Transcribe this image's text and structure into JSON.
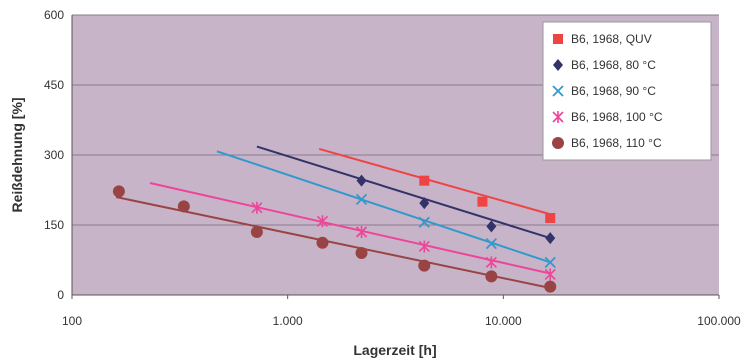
{
  "chart_data": {
    "type": "scatter",
    "xlabel": "Lagerzeit [h]",
    "ylabel": "Reißdehnung [%]",
    "xscale": "log",
    "xlim": [
      100,
      100000
    ],
    "ylim": [
      0,
      600
    ],
    "x_ticks": [
      100,
      1000,
      10000,
      100000
    ],
    "x_tick_labels": [
      "100",
      "1.000",
      "10.000",
      "100.000"
    ],
    "y_ticks": [
      0,
      150,
      300,
      450,
      600
    ],
    "y_tick_labels": [
      "0",
      "150",
      "300",
      "450",
      "600"
    ],
    "grid": "horizontal",
    "legend_position": "top-right",
    "plot_background": "#c8b4c8",
    "series": [
      {
        "name": "B6, 1968, QUV",
        "color": "#ee4444",
        "marker": "square",
        "points": [
          [
            4300,
            245
          ],
          [
            8000,
            200
          ],
          [
            16500,
            165
          ]
        ],
        "trend": [
          [
            1400,
            313
          ],
          [
            16500,
            173
          ]
        ]
      },
      {
        "name": "B6, 1968, 80 °C",
        "color": "#33336a",
        "marker": "diamond",
        "points": [
          [
            2200,
            245
          ],
          [
            4300,
            197
          ],
          [
            8800,
            147
          ],
          [
            16500,
            122
          ]
        ],
        "trend": [
          [
            720,
            318
          ],
          [
            16500,
            122
          ]
        ]
      },
      {
        "name": "B6, 1968, 90 °C",
        "color": "#3399cc",
        "marker": "x",
        "points": [
          [
            2200,
            205
          ],
          [
            4300,
            156
          ],
          [
            8800,
            110
          ],
          [
            16500,
            70
          ]
        ],
        "trend": [
          [
            470,
            308
          ],
          [
            16500,
            70
          ]
        ]
      },
      {
        "name": "B6, 1968, 100 °C",
        "color": "#ee4499",
        "marker": "star",
        "points": [
          [
            720,
            187
          ],
          [
            1450,
            158
          ],
          [
            2200,
            135
          ],
          [
            4300,
            104
          ],
          [
            8800,
            70
          ],
          [
            16500,
            44
          ]
        ],
        "trend": [
          [
            230,
            240
          ],
          [
            16500,
            46
          ]
        ]
      },
      {
        "name": "B6, 1968, 110 °C",
        "color": "#994444",
        "marker": "circle",
        "points": [
          [
            165,
            222
          ],
          [
            330,
            190
          ],
          [
            720,
            135
          ],
          [
            1450,
            112
          ],
          [
            2200,
            90
          ],
          [
            4300,
            63
          ],
          [
            8800,
            40
          ],
          [
            16500,
            18
          ]
        ],
        "trend": [
          [
            160,
            210
          ],
          [
            16500,
            15
          ]
        ]
      }
    ]
  }
}
